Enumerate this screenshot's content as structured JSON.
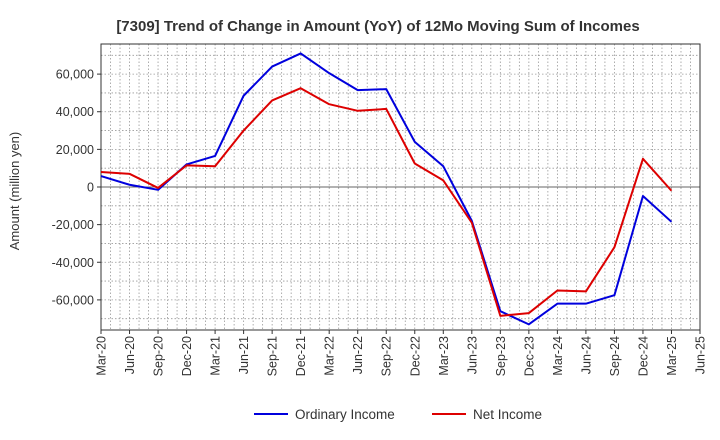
{
  "chart_data": {
    "type": "line",
    "title": "[7309]  Trend of Change in Amount (YoY) of 12Mo Moving Sum of Incomes",
    "ylabel": "Amount (million yen)",
    "xlabel": "",
    "ylim": [
      -76000,
      76000
    ],
    "yticks": [
      -60000,
      -40000,
      -20000,
      0,
      20000,
      40000,
      60000
    ],
    "ytick_labels": [
      "-60,000",
      "-40,000",
      "-20,000",
      "0",
      "20,000",
      "40,000",
      "60,000"
    ],
    "x_tick_labels": [
      "Mar-20",
      "Jun-20",
      "Sep-20",
      "Dec-20",
      "Mar-21",
      "Jun-21",
      "Sep-21",
      "Dec-21",
      "Mar-22",
      "Jun-22",
      "Sep-22",
      "Dec-22",
      "Mar-23",
      "Jun-23",
      "Sep-23",
      "Dec-23",
      "Mar-24",
      "Jun-24",
      "Sep-24",
      "Dec-24",
      "Mar-25",
      "Jun-25"
    ],
    "grid": true,
    "legend_position": "bottom-center",
    "series": [
      {
        "name": "Ordinary Income",
        "color": "#0000dd",
        "values": [
          5800,
          1200,
          -1500,
          12000,
          16500,
          48500,
          64000,
          71000,
          60500,
          51500,
          52000,
          24000,
          11000,
          -18000,
          -66000,
          -73000,
          -62000,
          -62000,
          -57500,
          -4800,
          -18500
        ]
      },
      {
        "name": "Net Income",
        "color": "#dd0000",
        "values": [
          8000,
          7000,
          -500,
          11500,
          11000,
          30000,
          46000,
          52500,
          44000,
          40500,
          41500,
          12500,
          3500,
          -19000,
          -68500,
          -67000,
          -55000,
          -55500,
          -32000,
          15000,
          -2000
        ]
      }
    ]
  }
}
